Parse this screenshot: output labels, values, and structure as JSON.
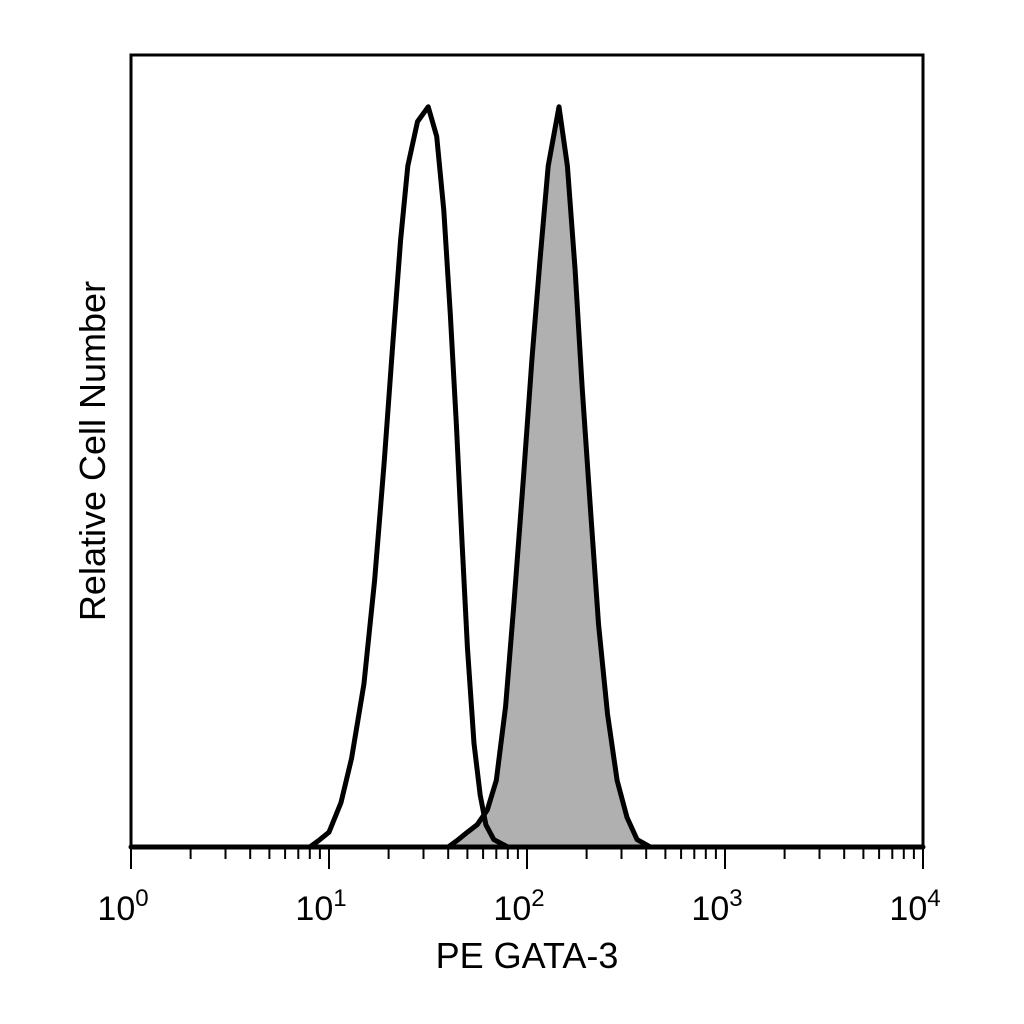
{
  "chart_data": {
    "type": "area",
    "title": "",
    "xlabel": "PE GATA-3",
    "ylabel": "Relative Cell Number",
    "x_scale": "log",
    "xlim": [
      1,
      10000
    ],
    "ylim": [
      0,
      1.07
    ],
    "grid": false,
    "x_ticks": [
      {
        "value": 1,
        "base": "10",
        "exp": "0"
      },
      {
        "value": 10,
        "base": "10",
        "exp": "1"
      },
      {
        "value": 100,
        "base": "10",
        "exp": "2"
      },
      {
        "value": 1000,
        "base": "10",
        "exp": "3"
      },
      {
        "value": 10000,
        "base": "10",
        "exp": "4"
      }
    ],
    "series": [
      {
        "style": "open",
        "stroke": "#000000",
        "fill": "none",
        "points": [
          [
            1,
            0
          ],
          [
            8,
            0
          ],
          [
            9,
            0.01
          ],
          [
            10,
            0.02
          ],
          [
            11.5,
            0.06
          ],
          [
            13,
            0.12
          ],
          [
            15,
            0.22
          ],
          [
            17,
            0.36
          ],
          [
            19,
            0.52
          ],
          [
            21,
            0.68
          ],
          [
            23,
            0.82
          ],
          [
            25,
            0.92
          ],
          [
            28,
            0.98
          ],
          [
            31.7,
            1.0
          ],
          [
            35,
            0.96
          ],
          [
            38,
            0.86
          ],
          [
            41,
            0.72
          ],
          [
            44,
            0.57
          ],
          [
            47,
            0.41
          ],
          [
            50,
            0.27
          ],
          [
            54,
            0.14
          ],
          [
            58,
            0.07
          ],
          [
            62,
            0.03
          ],
          [
            68,
            0.01
          ],
          [
            80,
            0
          ],
          [
            10000,
            0
          ]
        ]
      },
      {
        "style": "filled",
        "stroke": "#000000",
        "fill": "#b0b0b0",
        "points": [
          [
            1,
            0
          ],
          [
            40,
            0
          ],
          [
            45,
            0.01
          ],
          [
            50,
            0.02
          ],
          [
            56,
            0.03
          ],
          [
            63,
            0.05
          ],
          [
            70,
            0.09
          ],
          [
            78,
            0.19
          ],
          [
            86,
            0.33
          ],
          [
            96,
            0.5
          ],
          [
            106,
            0.66
          ],
          [
            116,
            0.79
          ],
          [
            128,
            0.92
          ],
          [
            145,
            1.0
          ],
          [
            160,
            0.92
          ],
          [
            175,
            0.78
          ],
          [
            190,
            0.62
          ],
          [
            210,
            0.45
          ],
          [
            230,
            0.3
          ],
          [
            255,
            0.18
          ],
          [
            285,
            0.09
          ],
          [
            320,
            0.04
          ],
          [
            360,
            0.01
          ],
          [
            420,
            0
          ],
          [
            10000,
            0
          ]
        ]
      }
    ]
  }
}
